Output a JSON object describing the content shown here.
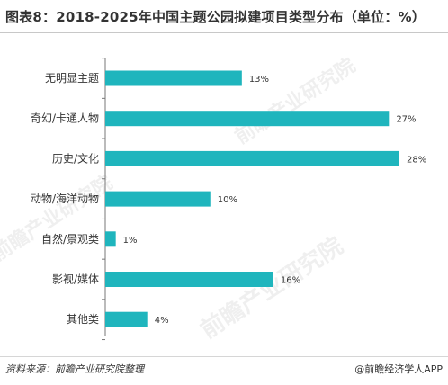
{
  "title": "图表8：2018-2025年中国主题公园拟建项目类型分布（单位：%）",
  "source": "资料来源：前瞻产业研究院整理",
  "brand": "@前瞻经济学人APP",
  "watermark": "前瞻产业研究院",
  "colors": {
    "bar": "#1fb5bd",
    "axis": "#777777"
  },
  "chart_data": {
    "type": "bar",
    "orientation": "horizontal",
    "title": "图表8：2018-2025年中国主题公园拟建项目类型分布（单位：%）",
    "categories": [
      "无明显主题",
      "奇幻/卡通人物",
      "历史/文化",
      "动物/海洋动物",
      "自然/景观类",
      "影视/媒体",
      "其他类"
    ],
    "values": [
      13,
      27,
      28,
      10,
      1,
      16,
      4
    ],
    "value_labels": [
      "13%",
      "27%",
      "28%",
      "10%",
      "1%",
      "16%",
      "4%"
    ],
    "xlim": [
      0,
      28
    ],
    "grid": false,
    "legend": "none"
  }
}
